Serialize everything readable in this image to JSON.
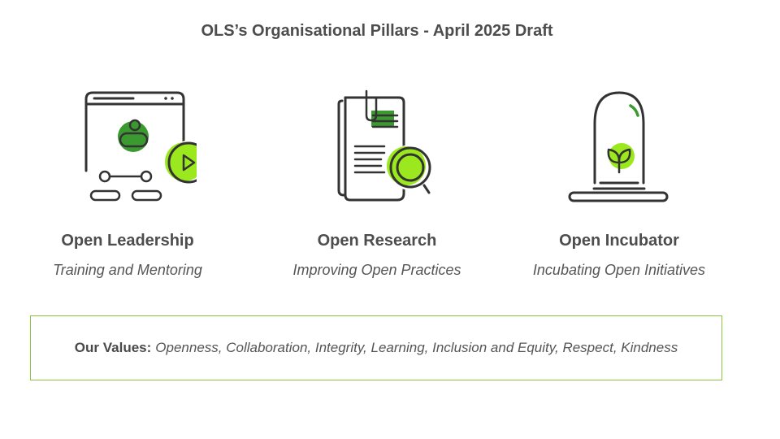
{
  "title": "OLS’s Organisational Pillars - April 2025 Draft",
  "pillars": [
    {
      "title": "Open Leadership",
      "subtitle": "Training and Mentoring",
      "icon": "video-mentoring-icon"
    },
    {
      "title": "Open Research",
      "subtitle": "Improving Open Practices",
      "icon": "document-magnifier-icon"
    },
    {
      "title": "Open Incubator",
      "subtitle": "Incubating Open Initiatives",
      "icon": "sprout-bell-jar-icon"
    }
  ],
  "values": {
    "label": "Our Values:",
    "text": "Openness, Collaboration, Integrity, Learning, Inclusion and Equity, Respect, Kindness"
  },
  "colors": {
    "accent_green": "#7ed321",
    "dark_green": "#3a8f2b",
    "icon_stroke": "#333333",
    "box_border": "#8cc63f"
  }
}
